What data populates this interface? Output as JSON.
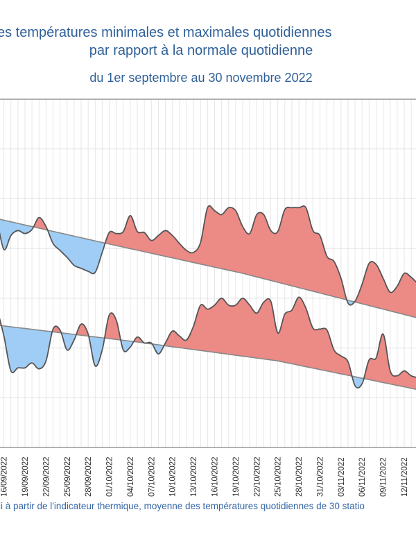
{
  "title": {
    "line1": "es températures minimales et maximales quotidiennes",
    "line2": "par rapport à la normale quotidienne",
    "line3": "du 1er septembre au 30 novembre 2022"
  },
  "footer": "li à partir de l'indicateur thermique, moyenne des températures quotidiennes de 30 statio",
  "colors": {
    "above": "#ec8a86",
    "below": "#9fcdf5",
    "line": "#555555",
    "normal": "#888888",
    "text": "#2e5f98"
  },
  "chart_data": {
    "type": "area",
    "title": "Écart des températures minimales et maximales quotidiennes par rapport à la normale quotidienne",
    "subtitle": "du 1er septembre au 30 novembre 2022",
    "xlabel": "",
    "ylabel": "",
    "x_start_day_offset": -1,
    "x_note": "day index 0 = 16/09/2022, one point per day",
    "ylim": [
      0,
      35
    ],
    "y_grid_step": 5,
    "grid": true,
    "x_tick_every_days": 3,
    "x_tick_labels": [
      "16/09/2022",
      "19/09/2022",
      "22/09/2022",
      "25/09/2022",
      "28/09/2022",
      "01/10/2022",
      "04/10/2022",
      "07/10/2022",
      "10/10/2022",
      "13/10/2022",
      "16/10/2022",
      "19/10/2022",
      "22/10/2022",
      "25/10/2022",
      "28/10/2022",
      "31/10/2022",
      "03/11/2022",
      "06/11/2022",
      "09/11/2022",
      "12/11/2022"
    ],
    "series": [
      {
        "name": "Température maximale",
        "values": [
          23.0,
          19.9,
          21.3,
          21.8,
          21.5,
          21.9,
          23.1,
          22.2,
          20.5,
          19.8,
          19.1,
          18.3,
          18.0,
          17.7,
          17.6,
          19.6,
          21.6,
          21.5,
          21.7,
          23.3,
          21.7,
          21.6,
          20.8,
          21.3,
          21.8,
          21.3,
          20.5,
          19.8,
          19.6,
          20.6,
          24.1,
          23.8,
          23.4,
          24.1,
          23.8,
          22.2,
          21.5,
          23.4,
          23.4,
          21.8,
          21.7,
          23.9,
          24.1,
          24.1,
          24.1,
          21.8,
          21.3,
          19.2,
          18.7,
          17.0,
          14.5,
          14.7,
          16.4,
          18.5,
          18.4,
          17.0,
          15.6,
          16.2,
          17.5,
          17.1,
          16.4
        ],
        "normal": {
          "days": [
            -1,
            14,
            34,
            59
          ],
          "values": [
            23.0,
            20.6,
            17.5,
            13.0
          ]
        }
      },
      {
        "name": "Température minimale",
        "values": [
          14.0,
          11.2,
          7.7,
          8.0,
          8.0,
          8.5,
          7.9,
          8.7,
          11.9,
          11.8,
          9.8,
          10.8,
          12.4,
          11.4,
          8.2,
          9.8,
          13.3,
          12.8,
          9.8,
          10.1,
          11.1,
          10.5,
          10.5,
          9.4,
          10.5,
          11.7,
          11.2,
          10.8,
          12.2,
          14.3,
          13.9,
          14.3,
          15.0,
          14.3,
          14.3,
          15.0,
          14.3,
          13.5,
          14.6,
          14.7,
          11.5,
          13.4,
          13.8,
          15.1,
          14.0,
          12.0,
          11.9,
          11.8,
          9.8,
          9.2,
          8.6,
          6.2,
          6.4,
          8.8,
          9.0,
          11.4,
          7.7,
          7.2,
          7.7,
          7.2,
          7.0
        ],
        "normal": {
          "days": [
            -1,
            19,
            39,
            59
          ],
          "values": [
            12.3,
            10.6,
            8.7,
            5.8
          ]
        }
      }
    ],
    "legend": "none"
  }
}
